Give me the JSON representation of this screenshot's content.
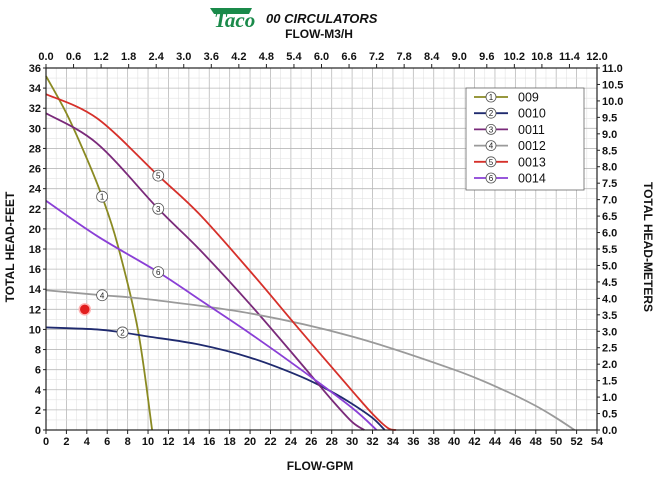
{
  "header": {
    "brand": "Taco",
    "title": "00 CIRCULATORS"
  },
  "chart_data": {
    "type": "line",
    "title": "00 CIRCULATORS",
    "xlabel": "FLOW-GPM",
    "ylabel": "TOTAL HEAD-FEET",
    "x2label": "FLOW-M3/H",
    "y2label": "TOTAL HEAD-METERS",
    "xlim": [
      0,
      54
    ],
    "ylim": [
      0,
      36
    ],
    "x2lim": [
      0,
      12.0
    ],
    "y2lim": [
      0,
      11.0
    ],
    "x_ticks": [
      "0",
      "2",
      "4",
      "6",
      "8",
      "10",
      "12",
      "14",
      "16",
      "18",
      "20",
      "22",
      "24",
      "26",
      "28",
      "30",
      "32",
      "34",
      "36",
      "38",
      "40",
      "42",
      "44",
      "46",
      "48",
      "50",
      "52",
      "54"
    ],
    "y_ticks": [
      "0",
      "2",
      "4",
      "6",
      "8",
      "10",
      "12",
      "14",
      "16",
      "18",
      "20",
      "22",
      "24",
      "26",
      "28",
      "30",
      "32",
      "34",
      "36"
    ],
    "x2_ticks": [
      "0.0",
      "0.6",
      "1.2",
      "1.8",
      "2.4",
      "3.0",
      "3.6",
      "4.2",
      "4.8",
      "5.4",
      "6.0",
      "6.6",
      "7.2",
      "7.8",
      "8.4",
      "9.0",
      "9.6",
      "10.2",
      "10.8",
      "11.4",
      "12.0"
    ],
    "y2_ticks": [
      "0.0",
      "0.5",
      "1.0",
      "1.5",
      "2.0",
      "2.5",
      "3.0",
      "3.5",
      "4.0",
      "4.5",
      "5.0",
      "5.5",
      "6.0",
      "6.5",
      "7.0",
      "7.5",
      "8.0",
      "8.5",
      "9.0",
      "9.5",
      "10.0",
      "10.5",
      "11.0"
    ],
    "grid": true,
    "legend_position": "top-right",
    "series": [
      {
        "name": "009",
        "id": "1",
        "color": "#8a8a22",
        "x": [
          0,
          2,
          4,
          5.5,
          7,
          9,
          10.4
        ],
        "y": [
          35.2,
          31.5,
          27.0,
          23.2,
          18.5,
          10.0,
          0
        ],
        "marker_at": [
          5.5,
          23.2
        ]
      },
      {
        "name": "0010",
        "id": "2",
        "color": "#1f2a6e",
        "x": [
          0,
          5,
          7.5,
          10,
          15,
          20,
          25,
          28,
          30,
          32,
          33.2
        ],
        "y": [
          10.2,
          10.0,
          9.7,
          9.3,
          8.5,
          7.2,
          5.3,
          3.8,
          2.6,
          1.2,
          0
        ],
        "marker_at": [
          7.5,
          9.7
        ]
      },
      {
        "name": "0011",
        "id": "3",
        "color": "#7a2a7a",
        "x": [
          0,
          5,
          11,
          15,
          20,
          25,
          28,
          30,
          31.2
        ],
        "y": [
          31.5,
          28.5,
          22.0,
          18.0,
          12.5,
          6.6,
          3.0,
          0.8,
          0
        ],
        "marker_at": [
          11,
          22.0
        ]
      },
      {
        "name": "0012",
        "id": "4",
        "color": "#9a9a9a",
        "x": [
          0,
          5.5,
          10,
          20,
          30,
          40,
          45,
          48,
          50,
          51.8
        ],
        "y": [
          13.9,
          13.4,
          13.0,
          11.6,
          9.3,
          6.0,
          3.9,
          2.4,
          1.2,
          0
        ],
        "marker_at": [
          5.5,
          13.4
        ]
      },
      {
        "name": "0013",
        "id": "5",
        "color": "#d6302a",
        "x": [
          0,
          5,
          11,
          15,
          20,
          25,
          30,
          32,
          33.5,
          34.3
        ],
        "y": [
          33.4,
          31.0,
          25.3,
          21.5,
          15.8,
          9.8,
          3.9,
          1.6,
          0.2,
          0
        ],
        "marker_at": [
          11,
          25.3
        ]
      },
      {
        "name": "0014",
        "id": "6",
        "color": "#8a3fd6",
        "x": [
          0,
          5,
          11,
          15,
          20,
          25,
          30,
          32.4
        ],
        "y": [
          22.8,
          19.3,
          15.7,
          13.0,
          9.6,
          6.0,
          2.2,
          0
        ],
        "marker_at": [
          11,
          15.7
        ]
      }
    ],
    "points": [
      {
        "name": "operating-point",
        "x": 3.8,
        "y": 12.0,
        "color": "#e21e1e"
      }
    ]
  }
}
